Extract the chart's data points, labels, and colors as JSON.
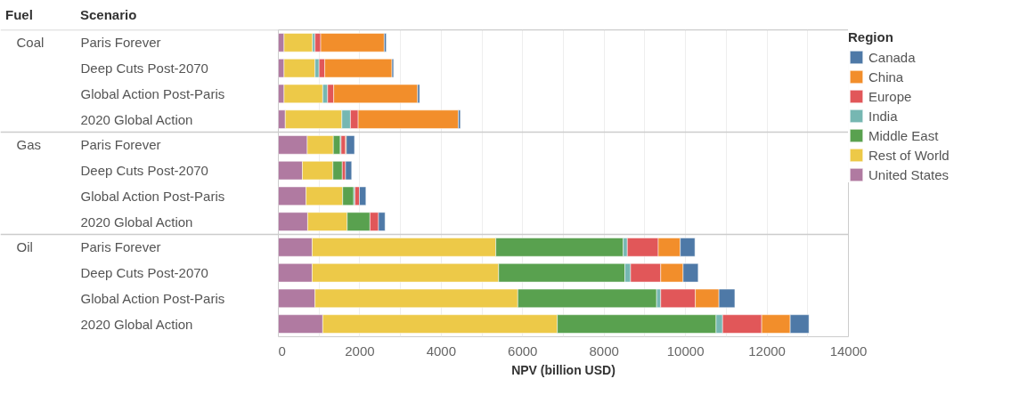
{
  "chart_data": {
    "type": "bar",
    "orientation": "horizontal",
    "stacked": true,
    "xlabel": "NPV (billion USD)",
    "legend_title": "Region",
    "legend": "right",
    "grid": "x",
    "annotations": [
      "Fuel",
      "Scenario",
      "Coal",
      "Gas",
      "Oil"
    ],
    "categories": [
      "Paris Forever",
      "Deep Cuts Post-2070",
      "Global Action Post-Paris",
      "2020 Global Action",
      "Paris Forever",
      "Deep Cuts Post-2070",
      "Global Action Post-Paris",
      "2020 Global Action",
      "Paris Forever",
      "Deep Cuts Post-2070",
      "Global Action Post-Paris",
      "2020 Global Action"
    ],
    "xlim": [
      0,
      14000
    ],
    "xticks": [
      0,
      2000,
      4000,
      6000,
      8000,
      10000,
      12000,
      14000
    ],
    "series": [
      {
        "name": "United States",
        "color": "#b07aa1",
        "values": [
          140,
          140,
          140,
          170,
          710,
          590,
          680,
          720,
          830,
          830,
          900,
          1090
        ]
      },
      {
        "name": "Rest of World",
        "color": "#edc948",
        "values": [
          700,
          760,
          950,
          1390,
          640,
          750,
          900,
          970,
          4510,
          4580,
          4980,
          5760
        ]
      },
      {
        "name": "Middle East",
        "color": "#59a14f",
        "values": [
          null,
          null,
          null,
          null,
          170,
          230,
          270,
          560,
          3130,
          3100,
          3410,
          3900
        ]
      },
      {
        "name": "India",
        "color": "#76b7b2",
        "values": [
          60,
          100,
          120,
          210,
          20,
          null,
          30,
          null,
          100,
          140,
          100,
          160
        ]
      },
      {
        "name": "Europe",
        "color": "#e15759",
        "values": [
          140,
          140,
          150,
          190,
          110,
          80,
          110,
          210,
          760,
          740,
          850,
          960
        ]
      },
      {
        "name": "China",
        "color": "#f28e2b",
        "values": [
          1560,
          1650,
          2060,
          2460,
          20,
          null,
          null,
          null,
          540,
          550,
          580,
          700
        ]
      },
      {
        "name": "Canada",
        "color": "#4e79a7",
        "values": [
          50,
          40,
          50,
          50,
          200,
          150,
          160,
          160,
          360,
          370,
          390,
          460
        ]
      }
    ]
  }
}
